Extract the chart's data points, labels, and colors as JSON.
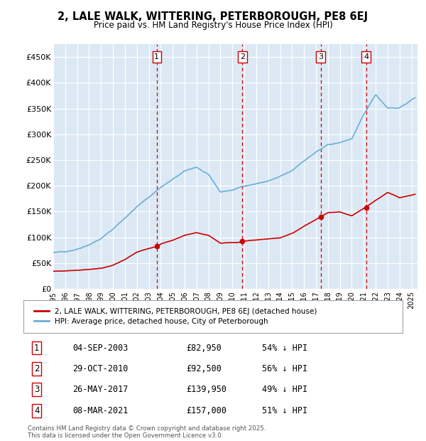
{
  "title": "2, LALE WALK, WITTERING, PETERBOROUGH, PE8 6EJ",
  "subtitle": "Price paid vs. HM Land Registry's House Price Index (HPI)",
  "plot_bg_color": "#dce9f5",
  "ylim": [
    0,
    475000
  ],
  "yticks": [
    0,
    50000,
    100000,
    150000,
    200000,
    250000,
    300000,
    350000,
    400000,
    450000
  ],
  "ytick_labels": [
    "£0",
    "£50K",
    "£100K",
    "£150K",
    "£200K",
    "£250K",
    "£300K",
    "£350K",
    "£400K",
    "£450K"
  ],
  "hpi_color": "#6baed6",
  "price_color": "#cc0000",
  "vline_color": "#cc0000",
  "legend_label_price": "2, LALE WALK, WITTERING, PETERBOROUGH, PE8 6EJ (detached house)",
  "legend_label_hpi": "HPI: Average price, detached house, City of Peterborough",
  "transactions": [
    {
      "num": 1,
      "date": "04-SEP-2003",
      "price": 82950,
      "pct": "54% ↓ HPI",
      "x_year": 2003.67
    },
    {
      "num": 2,
      "date": "29-OCT-2010",
      "price": 92500,
      "pct": "56% ↓ HPI",
      "x_year": 2010.83
    },
    {
      "num": 3,
      "date": "26-MAY-2017",
      "price": 139950,
      "pct": "49% ↓ HPI",
      "x_year": 2017.4
    },
    {
      "num": 4,
      "date": "08-MAR-2021",
      "price": 157000,
      "pct": "51% ↓ HPI",
      "x_year": 2021.19
    }
  ],
  "footer": "Contains HM Land Registry data © Crown copyright and database right 2025.\nThis data is licensed under the Open Government Licence v3.0.",
  "xmin": 1995,
  "xmax": 2025.5,
  "hpi_knots_x": [
    1995,
    1996,
    1997,
    1998,
    1999,
    2000,
    2001,
    2002,
    2003,
    2004,
    2005,
    2006,
    2007,
    2008,
    2009,
    2010,
    2011,
    2012,
    2013,
    2014,
    2015,
    2016,
    2017,
    2018,
    2019,
    2020,
    2021,
    2022,
    2023,
    2024,
    2025.3
  ],
  "hpi_knots_y": [
    70000,
    72000,
    78000,
    88000,
    100000,
    118000,
    140000,
    162000,
    180000,
    200000,
    215000,
    230000,
    238000,
    222000,
    188000,
    192000,
    200000,
    205000,
    210000,
    218000,
    228000,
    248000,
    265000,
    278000,
    282000,
    290000,
    335000,
    375000,
    350000,
    350000,
    370000
  ],
  "price_knots_x": [
    1995,
    1996,
    1997,
    1998,
    1999,
    2000,
    2001,
    2002,
    2003.67,
    2004,
    2005,
    2006,
    2007,
    2008,
    2009,
    2010.83,
    2011,
    2012,
    2013,
    2014,
    2015,
    2016,
    2017.4,
    2018,
    2019,
    2020,
    2021.19,
    2022,
    2023,
    2024,
    2025.3
  ],
  "price_knots_y": [
    34000,
    35000,
    37000,
    39000,
    41000,
    47000,
    58000,
    72000,
    82950,
    88000,
    95000,
    105000,
    110000,
    105000,
    90000,
    92500,
    94000,
    96000,
    98000,
    100000,
    108000,
    122000,
    139950,
    148000,
    148000,
    140000,
    157000,
    170000,
    185000,
    175000,
    182000
  ]
}
